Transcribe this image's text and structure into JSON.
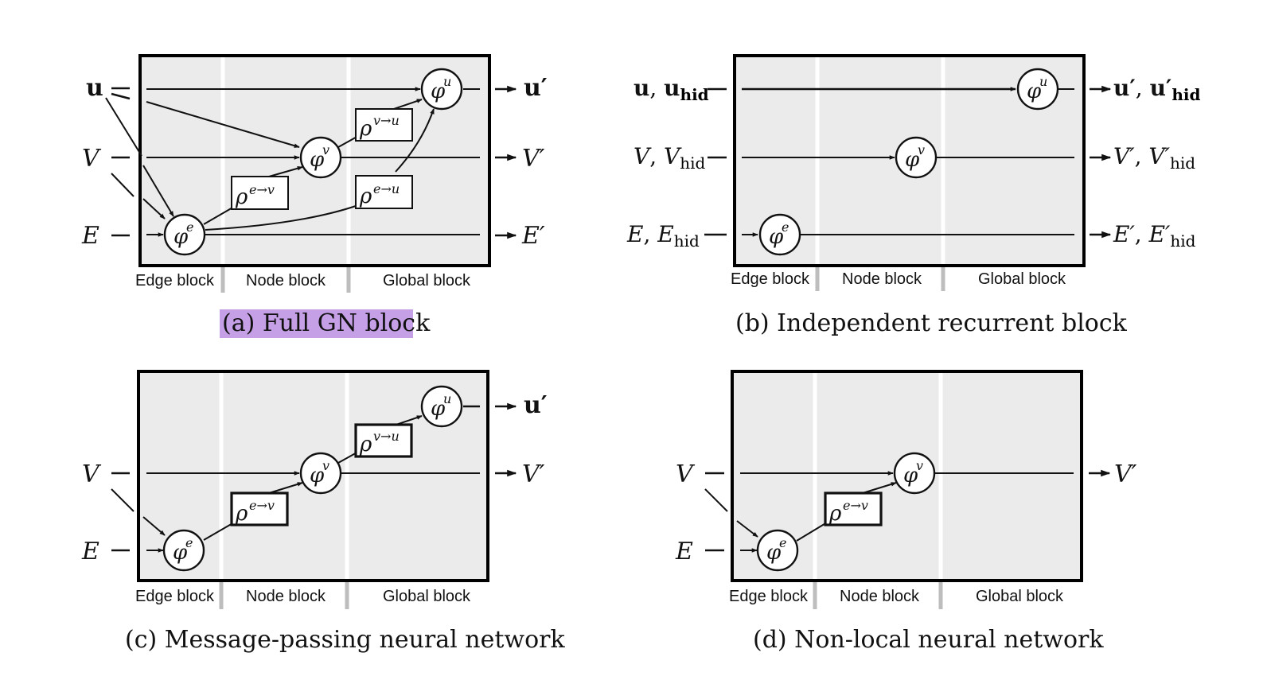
{
  "block_labels": {
    "edge": "Edge block",
    "node": "Node block",
    "global": "Global block"
  },
  "panels": {
    "a": {
      "caption": "(a) Full GN block",
      "caption_highlighted": true,
      "inputs": {
        "u": "u",
        "v": "V",
        "e": "E"
      },
      "outputs": {
        "u": "u′",
        "v": "V′",
        "e": "E′"
      },
      "functions": {
        "phi_e": "e",
        "phi_v": "v",
        "phi_u": "u"
      },
      "aggregators": {
        "e_to_v": "e→v",
        "v_to_u": "v→u",
        "e_to_u": "e→u"
      }
    },
    "b": {
      "caption": "(b) Independent recurrent block",
      "inputs": {
        "u": "u",
        "u_hid": "hid",
        "v": "V",
        "v_hid": "hid",
        "e": "E",
        "e_hid": "hid"
      },
      "outputs": {
        "u": "u′",
        "u_hid": "hid",
        "v": "V′",
        "v_hid": "hid",
        "e": "E′",
        "e_hid": "hid"
      },
      "functions": {
        "phi_e": "e",
        "phi_v": "v",
        "phi_u": "u"
      }
    },
    "c": {
      "caption": "(c) Message-passing neural network",
      "inputs": {
        "v": "V",
        "e": "E"
      },
      "outputs": {
        "u": "u′",
        "v": "V′"
      },
      "functions": {
        "phi_e": "e",
        "phi_v": "v",
        "phi_u": "u"
      },
      "aggregators": {
        "e_to_v": "e→v",
        "v_to_u": "v→u"
      }
    },
    "d": {
      "caption": "(d) Non-local neural network",
      "inputs": {
        "v": "V",
        "e": "E"
      },
      "outputs": {
        "v": "V′"
      },
      "functions": {
        "phi_e": "e",
        "phi_v": "v"
      },
      "aggregators": {
        "e_to_v": "e→v"
      }
    }
  }
}
